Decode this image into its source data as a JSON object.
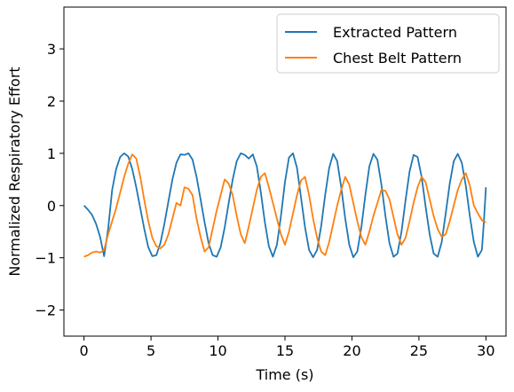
{
  "chart_data": {
    "type": "line",
    "title": "",
    "xlabel": "Time (s)",
    "ylabel": "Normalized Respiratory Effort",
    "xlim": [
      -1.5,
      31.5
    ],
    "ylim": [
      -2.5,
      3.8
    ],
    "xticks": [
      0,
      5,
      10,
      15,
      20,
      25,
      30
    ],
    "yticks": [
      -2,
      -1,
      0,
      1,
      2,
      3
    ],
    "xtick_labels": [
      "0",
      "5",
      "10",
      "15",
      "20",
      "25",
      "30"
    ],
    "ytick_labels": [
      "−2",
      "−1",
      "0",
      "1",
      "2",
      "3"
    ],
    "grid": false,
    "legend_position": "top-right",
    "series": [
      {
        "name": "Extracted Pattern",
        "color": "#1f77b4",
        "x": [
          0,
          0.3,
          0.6,
          0.9,
          1.2,
          1.5,
          1.8,
          2.1,
          2.4,
          2.7,
          3.0,
          3.3,
          3.6,
          3.9,
          4.2,
          4.5,
          4.8,
          5.1,
          5.4,
          5.7,
          6.0,
          6.3,
          6.6,
          6.9,
          7.2,
          7.5,
          7.8,
          8.1,
          8.4,
          8.7,
          9.0,
          9.3,
          9.6,
          9.9,
          10.2,
          10.5,
          10.8,
          11.1,
          11.4,
          11.7,
          12.0,
          12.3,
          12.6,
          12.9,
          13.2,
          13.5,
          13.8,
          14.1,
          14.4,
          14.7,
          15.0,
          15.3,
          15.6,
          15.9,
          16.2,
          16.5,
          16.8,
          17.1,
          17.4,
          17.7,
          18.0,
          18.3,
          18.6,
          18.9,
          19.2,
          19.5,
          19.8,
          20.1,
          20.4,
          20.7,
          21.0,
          21.3,
          21.6,
          21.9,
          22.2,
          22.5,
          22.8,
          23.1,
          23.4,
          23.7,
          24.0,
          24.3,
          24.6,
          24.9,
          25.2,
          25.5,
          25.8,
          26.1,
          26.4,
          26.7,
          27.0,
          27.3,
          27.6,
          27.9,
          28.2,
          28.5,
          28.8,
          29.1,
          29.4,
          29.7,
          29.85,
          30.0
        ],
        "y": [
          0.0,
          -0.08,
          -0.18,
          -0.35,
          -0.6,
          -0.97,
          -0.45,
          0.3,
          0.7,
          0.93,
          1.0,
          0.94,
          0.7,
          0.35,
          -0.05,
          -0.45,
          -0.8,
          -0.97,
          -0.95,
          -0.72,
          -0.35,
          0.08,
          0.5,
          0.82,
          0.98,
          0.97,
          1.0,
          0.88,
          0.55,
          0.12,
          -0.32,
          -0.72,
          -0.95,
          -0.98,
          -0.8,
          -0.42,
          0.05,
          0.5,
          0.85,
          1.0,
          0.97,
          0.9,
          0.98,
          0.75,
          0.25,
          -0.32,
          -0.78,
          -0.98,
          -0.75,
          -0.2,
          0.45,
          0.92,
          1.0,
          0.72,
          0.15,
          -0.42,
          -0.85,
          -0.99,
          -0.85,
          -0.4,
          0.2,
          0.72,
          0.99,
          0.85,
          0.35,
          -0.25,
          -0.75,
          -0.99,
          -0.88,
          -0.42,
          0.2,
          0.75,
          0.99,
          0.88,
          0.4,
          -0.2,
          -0.72,
          -0.98,
          -0.92,
          -0.5,
          0.1,
          0.65,
          0.97,
          0.93,
          0.55,
          -0.02,
          -0.55,
          -0.92,
          -0.98,
          -0.7,
          -0.15,
          0.42,
          0.85,
          0.99,
          0.82,
          0.38,
          -0.2,
          -0.7,
          -0.98,
          -0.85,
          -0.3,
          0.35
        ]
      },
      {
        "name": "Chest Belt Pattern",
        "color": "#ff7f0e",
        "x": [
          0,
          0.3,
          0.6,
          0.9,
          1.2,
          1.5,
          1.8,
          2.1,
          2.4,
          2.7,
          3.0,
          3.3,
          3.6,
          3.9,
          4.2,
          4.5,
          4.8,
          5.1,
          5.4,
          5.7,
          6.0,
          6.3,
          6.6,
          6.9,
          7.2,
          7.5,
          7.8,
          8.1,
          8.4,
          8.7,
          9.0,
          9.3,
          9.6,
          9.9,
          10.2,
          10.5,
          10.8,
          11.1,
          11.4,
          11.7,
          12.0,
          12.3,
          12.6,
          12.9,
          13.2,
          13.5,
          13.8,
          14.1,
          14.4,
          14.7,
          15.0,
          15.3,
          15.6,
          15.9,
          16.2,
          16.5,
          16.8,
          17.1,
          17.4,
          17.7,
          18.0,
          18.3,
          18.6,
          18.9,
          19.2,
          19.5,
          19.8,
          20.1,
          20.4,
          20.7,
          21.0,
          21.3,
          21.6,
          21.9,
          22.2,
          22.5,
          22.8,
          23.1,
          23.4,
          23.7,
          24.0,
          24.3,
          24.6,
          24.9,
          25.2,
          25.5,
          25.8,
          26.1,
          26.4,
          26.7,
          27.0,
          27.3,
          27.6,
          27.9,
          28.2,
          28.5,
          28.8,
          29.1,
          29.4,
          29.7,
          30.0
        ],
        "y": [
          -0.98,
          -0.95,
          -0.9,
          -0.88,
          -0.9,
          -0.85,
          -0.55,
          -0.3,
          -0.05,
          0.25,
          0.55,
          0.8,
          0.98,
          0.9,
          0.55,
          0.1,
          -0.3,
          -0.62,
          -0.78,
          -0.82,
          -0.75,
          -0.55,
          -0.25,
          0.05,
          0.0,
          0.35,
          0.32,
          0.2,
          -0.25,
          -0.6,
          -0.88,
          -0.8,
          -0.45,
          -0.1,
          0.2,
          0.5,
          0.42,
          0.2,
          -0.2,
          -0.55,
          -0.72,
          -0.4,
          -0.05,
          0.3,
          0.55,
          0.62,
          0.35,
          0.05,
          -0.25,
          -0.55,
          -0.75,
          -0.5,
          -0.15,
          0.2,
          0.48,
          0.55,
          0.2,
          -0.25,
          -0.62,
          -0.88,
          -0.95,
          -0.7,
          -0.35,
          0.0,
          0.3,
          0.55,
          0.4,
          0.05,
          -0.3,
          -0.6,
          -0.75,
          -0.5,
          -0.2,
          0.05,
          0.3,
          0.28,
          0.12,
          -0.22,
          -0.55,
          -0.75,
          -0.62,
          -0.3,
          0.05,
          0.35,
          0.55,
          0.45,
          0.12,
          -0.2,
          -0.45,
          -0.6,
          -0.55,
          -0.3,
          0.0,
          0.3,
          0.5,
          0.62,
          0.38,
          0.0,
          -0.15,
          -0.28,
          -0.32
        ]
      }
    ]
  }
}
